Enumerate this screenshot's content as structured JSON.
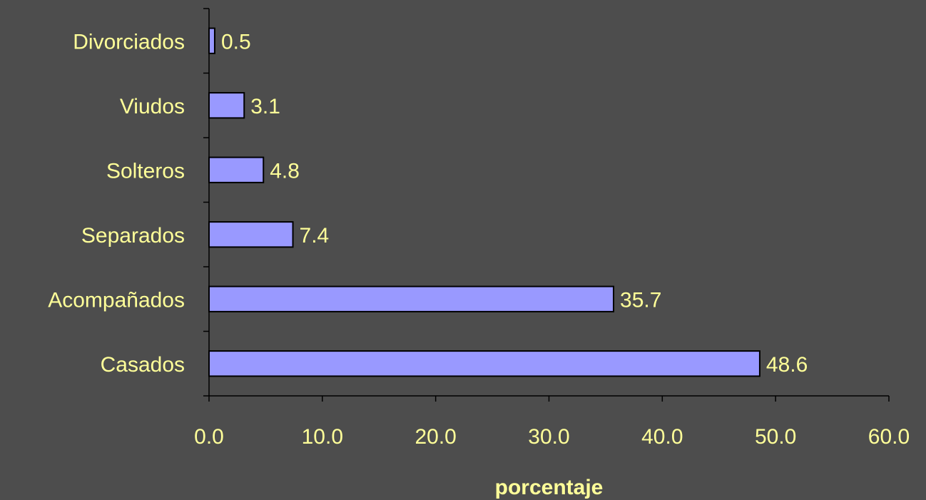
{
  "chart_data": {
    "type": "bar",
    "orientation": "horizontal",
    "categories": [
      "Divorciados",
      "Viudos",
      "Solteros",
      "Separados",
      "Acompañados",
      "Casados"
    ],
    "values": [
      0.5,
      3.1,
      4.8,
      7.4,
      35.7,
      48.6
    ],
    "value_labels": [
      "0.5",
      "3.1",
      "4.8",
      "7.4",
      "35.7",
      "48.6"
    ],
    "xticks": [
      "0.0",
      "10.0",
      "20.0",
      "30.0",
      "40.0",
      "50.0",
      "60.0"
    ],
    "xlim": [
      0,
      60
    ],
    "xlabel": "porcentaje",
    "ylabel": "",
    "title": "",
    "grid": false,
    "legend": "none"
  },
  "colors": {
    "background": "#4d4d4d",
    "bar_fill": "#9999ff",
    "bar_stroke": "#000000",
    "text": "#ffff99",
    "axis": "#000000"
  }
}
